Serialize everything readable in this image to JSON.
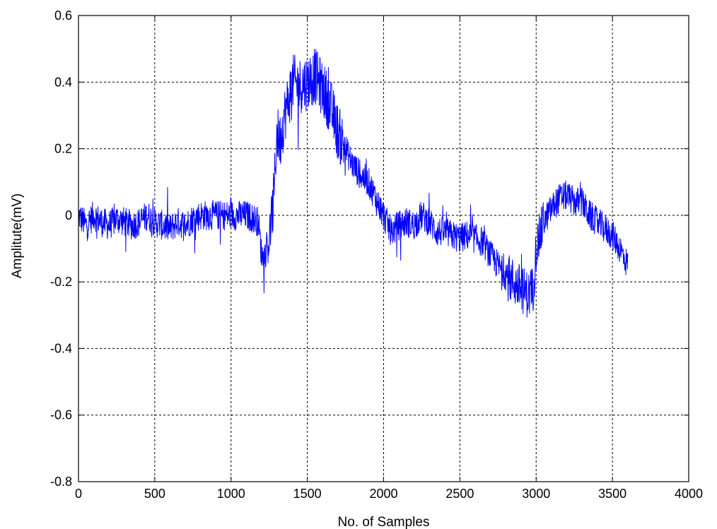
{
  "chart_data": {
    "type": "line",
    "title": "",
    "xlabel": "No. of Samples",
    "ylabel": "Amplitute(mV)",
    "xlim": [
      0,
      4000
    ],
    "ylim": [
      -0.8,
      0.6
    ],
    "xticks": [
      0,
      500,
      1000,
      1500,
      2000,
      2500,
      3000,
      3500,
      4000
    ],
    "yticks": [
      -0.8,
      -0.6,
      -0.4,
      -0.2,
      0,
      0.2,
      0.4,
      0.6
    ],
    "xtick_labels": [
      "0",
      "500",
      "1000",
      "1500",
      "2000",
      "2500",
      "3000",
      "3500",
      "4000"
    ],
    "ytick_labels": [
      "-0.8",
      "-0.6",
      "-0.4",
      "-0.2",
      "0",
      "0.2",
      "0.4",
      "0.6"
    ],
    "grid": true,
    "line_color": "#0000ff",
    "series": [
      {
        "x": [
          0,
          50,
          100,
          150,
          200,
          250,
          300,
          350,
          400,
          450,
          500,
          550,
          600,
          650,
          700,
          750,
          800,
          850,
          900,
          950,
          1000,
          1050,
          1100,
          1150,
          1180,
          1200,
          1220,
          1250,
          1280,
          1300,
          1320,
          1350,
          1380,
          1400,
          1450,
          1500,
          1550,
          1600,
          1650,
          1700,
          1750,
          1800,
          1850,
          1900,
          1950,
          2000,
          2050,
          2100,
          2150,
          2200,
          2250,
          2300,
          2350,
          2400,
          2450,
          2500,
          2550,
          2600,
          2650,
          2700,
          2750,
          2800,
          2850,
          2900,
          2950,
          2980,
          3000,
          3050,
          3100,
          3150,
          3200,
          3250,
          3300,
          3350,
          3400,
          3450,
          3500,
          3550,
          3600
        ],
        "y": [
          0.0,
          -0.03,
          0.0,
          -0.02,
          -0.03,
          -0.01,
          -0.02,
          -0.03,
          -0.02,
          0.0,
          -0.02,
          -0.03,
          -0.04,
          -0.02,
          -0.03,
          -0.01,
          0.0,
          0.0,
          0.0,
          0.0,
          0.0,
          0.0,
          0.0,
          -0.01,
          -0.02,
          -0.12,
          -0.12,
          -0.08,
          0.05,
          0.25,
          0.22,
          0.3,
          0.35,
          0.4,
          0.39,
          0.4,
          0.42,
          0.38,
          0.33,
          0.25,
          0.2,
          0.15,
          0.12,
          0.1,
          0.05,
          0.0,
          -0.05,
          -0.03,
          -0.02,
          -0.03,
          0.0,
          -0.02,
          -0.05,
          -0.05,
          -0.06,
          -0.07,
          -0.06,
          -0.07,
          -0.08,
          -0.12,
          -0.15,
          -0.18,
          -0.2,
          -0.22,
          -0.24,
          -0.22,
          -0.1,
          -0.02,
          0.02,
          0.05,
          0.06,
          0.04,
          0.04,
          0.0,
          -0.02,
          -0.04,
          -0.06,
          -0.1,
          -0.15
        ],
        "noise_amplitude": 0.045
      }
    ]
  }
}
